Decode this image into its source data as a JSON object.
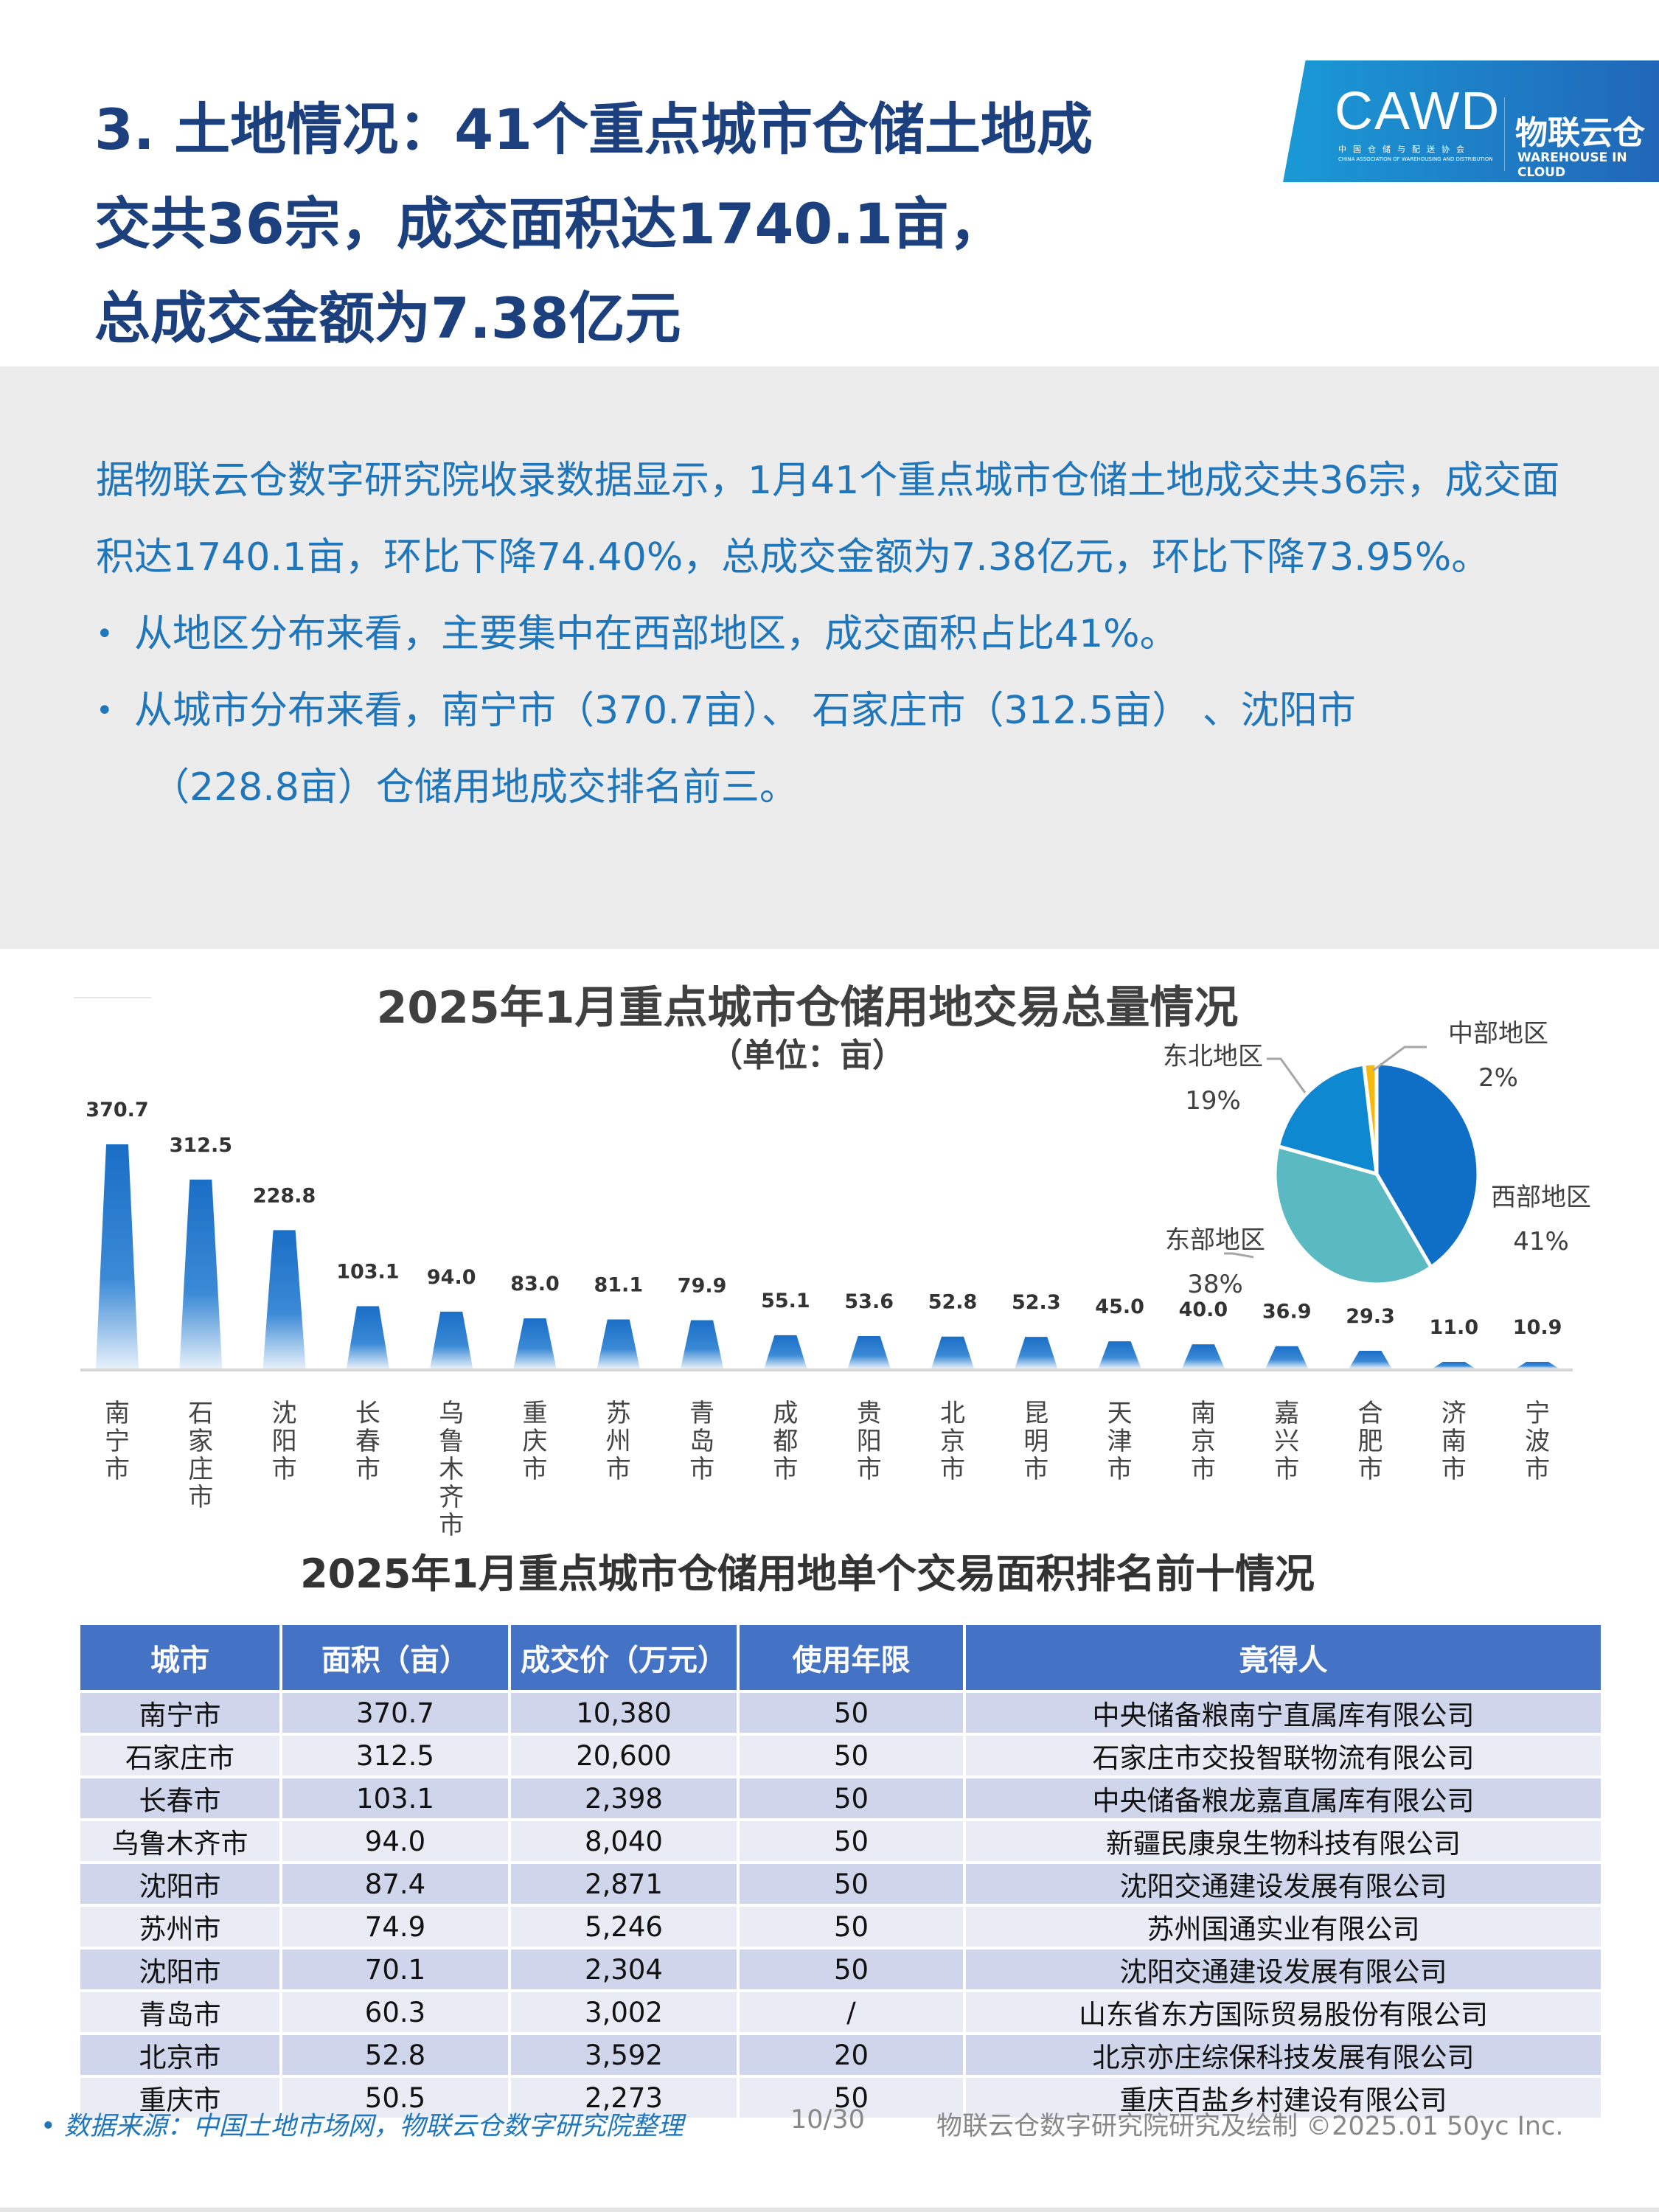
{
  "header": {
    "title_lines": [
      "3. 土地情况：41个重点城市仓储土地成",
      "交共36宗，成交面积达1740.1亩，",
      "总成交金额为7.38亿元"
    ]
  },
  "logo": {
    "cawd": "CAWD",
    "cawd_cn": "中国仓储与配送协会",
    "cawd_en": "CHINA ASSOCIATION OF WAREHOUSING AND DISTRIBUTION",
    "wic_cn": "物联云仓",
    "wic_en": "WAREHOUSE IN CLOUD"
  },
  "summary": {
    "paragraph": "据物联云仓数字研究院收录数据显示，1月41个重点城市仓储土地成交共36宗，成交面积达1740.1亩，环比下降74.40%，总成交金额为7.38亿元，环比下降73.95%。",
    "bullets": [
      "从地区分布来看，主要集中在西部地区，成交面积占比41%。",
      "从城市分布来看，南宁市（370.7亩）、 石家庄市（312.5亩） 、沈阳市",
      "（228.8亩）仓储用地成交排名前三。"
    ]
  },
  "chart_data": [
    {
      "type": "bar",
      "title": "2025年1月重点城市仓储用地交易总量情况",
      "subtitle": "（单位：亩）",
      "categories": [
        "南宁市",
        "石家庄市",
        "沈阳市",
        "长春市",
        "乌鲁木齐市",
        "重庆市",
        "苏州市",
        "青岛市",
        "成都市",
        "贵阳市",
        "北京市",
        "昆明市",
        "天津市",
        "南京市",
        "嘉兴市",
        "合肥市",
        "济南市",
        "宁波市"
      ],
      "values": [
        370.7,
        312.5,
        228.8,
        103.1,
        94.0,
        83.0,
        81.1,
        79.9,
        55.1,
        53.6,
        52.8,
        52.3,
        45.0,
        40.0,
        36.9,
        29.3,
        11.0,
        10.9
      ],
      "labels": [
        "370.7",
        "312.5",
        "228.8",
        "103.1",
        "94.0",
        "83.0",
        "81.1",
        "79.9",
        "55.1",
        "53.6",
        "52.8",
        "52.3",
        "45.0",
        "40.0",
        "36.9",
        "29.3",
        "11.0",
        "10.9"
      ],
      "color": "#1a6ec6"
    },
    {
      "type": "pie",
      "slices": [
        {
          "name": "西部地区",
          "value": 41,
          "label": "41%",
          "color": "#0f6fc6"
        },
        {
          "name": "东部地区",
          "value": 38,
          "label": "38%",
          "color": "#5bb9c1"
        },
        {
          "name": "东北地区",
          "value": 19,
          "label": "19%",
          "color": "#0e89d1"
        },
        {
          "name": "中部地区",
          "value": 2,
          "label": "2%",
          "color": "#f6b90d"
        }
      ]
    }
  ],
  "table": {
    "title": "2025年1月重点城市仓储用地单个交易面积排名前十情况",
    "headers": [
      "城市",
      "面积（亩）",
      "成交价（万元）",
      "使用年限",
      "竟得人"
    ],
    "rows": [
      [
        "南宁市",
        "370.7",
        "10,380",
        "50",
        "中央储备粮南宁直属库有限公司"
      ],
      [
        "石家庄市",
        "312.5",
        "20,600",
        "50",
        "石家庄市交投智联物流有限公司"
      ],
      [
        "长春市",
        "103.1",
        "2,398",
        "50",
        "中央储备粮龙嘉直属库有限公司"
      ],
      [
        "乌鲁木齐市",
        "94.0",
        "8,040",
        "50",
        "新疆民康泉生物科技有限公司"
      ],
      [
        "沈阳市",
        "87.4",
        "2,871",
        "50",
        "沈阳交通建设发展有限公司"
      ],
      [
        "苏州市",
        "74.9",
        "5,246",
        "50",
        "苏州国通实业有限公司"
      ],
      [
        "沈阳市",
        "70.1",
        "2,304",
        "50",
        "沈阳交通建设发展有限公司"
      ],
      [
        "青岛市",
        "60.3",
        "3,002",
        "/",
        "山东省东方国际贸易股份有限公司"
      ],
      [
        "北京市",
        "52.8",
        "3,592",
        "20",
        "北京亦庄综保科技发展有限公司"
      ],
      [
        "重庆市",
        "50.5",
        "2,273",
        "50",
        "重庆百盐乡村建设有限公司"
      ]
    ]
  },
  "footer": {
    "source": "•  数据来源：中国土地市场网，物联云仓数字研究院整理",
    "page": "10/30",
    "credit": "物联云仓数字研究院研究及绘制    ©2025.01 50yc Inc."
  }
}
